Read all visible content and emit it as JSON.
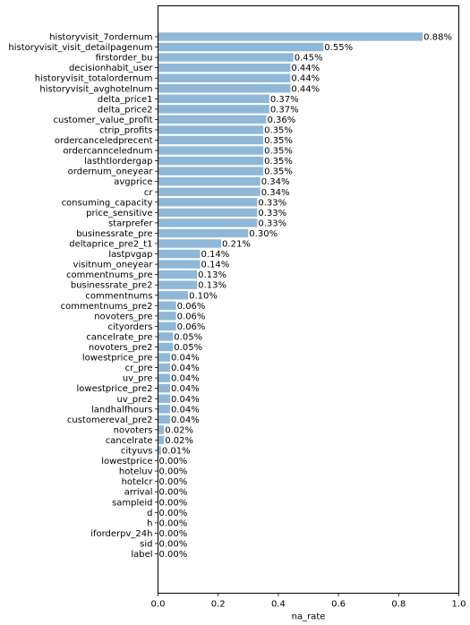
{
  "chart_data": {
    "type": "bar",
    "orientation": "horizontal",
    "xlabel": "na_rate",
    "ylabel": "",
    "xlim": [
      0.0,
      1.0
    ],
    "x_ticks": [
      "0.0",
      "0.2",
      "0.4",
      "0.6",
      "0.8",
      "1.0"
    ],
    "bar_color": "#8fb8d8",
    "grid": false,
    "categories": [
      "historyvisit_7ordernum",
      "historyvisit_visit_detailpagenum",
      "firstorder_bu",
      "decisionhabit_user",
      "historyvisit_totalordernum",
      "historyvisit_avghotelnum",
      "delta_price1",
      "delta_price2",
      "customer_value_profit",
      "ctrip_profits",
      "ordercanceledprecent",
      "ordercanncelednum",
      "lasthtlordergap",
      "ordernum_oneyear",
      "avgprice",
      "cr",
      "consuming_capacity",
      "price_sensitive",
      "starprefer",
      "businessrate_pre",
      "deltaprice_pre2_t1",
      "lastpvgap",
      "visitnum_oneyear",
      "commentnums_pre",
      "businessrate_pre2",
      "commentnums",
      "commentnums_pre2",
      "novoters_pre",
      "cityorders",
      "cancelrate_pre",
      "novoters_pre2",
      "lowestprice_pre",
      "cr_pre",
      "uv_pre",
      "lowestprice_pre2",
      "uv_pre2",
      "landhalfhours",
      "customereval_pre2",
      "novoters",
      "cancelrate",
      "cityuvs",
      "lowestprice",
      "hoteluv",
      "hotelcr",
      "arrival",
      "sampleid",
      "d",
      "h",
      "iforderpv_24h",
      "sid",
      "label"
    ],
    "values": [
      0.88,
      0.55,
      0.45,
      0.44,
      0.44,
      0.44,
      0.37,
      0.37,
      0.36,
      0.35,
      0.35,
      0.35,
      0.35,
      0.35,
      0.34,
      0.34,
      0.33,
      0.33,
      0.33,
      0.3,
      0.21,
      0.14,
      0.14,
      0.13,
      0.13,
      0.1,
      0.06,
      0.06,
      0.06,
      0.05,
      0.05,
      0.04,
      0.04,
      0.04,
      0.04,
      0.04,
      0.04,
      0.04,
      0.02,
      0.02,
      0.01,
      0.0,
      0.0,
      0.0,
      0.0,
      0.0,
      0.0,
      0.0,
      0.0,
      0.0,
      0.0
    ],
    "value_labels": [
      "0.88%",
      "0.55%",
      "0.45%",
      "0.44%",
      "0.44%",
      "0.44%",
      "0.37%",
      "0.37%",
      "0.36%",
      "0.35%",
      "0.35%",
      "0.35%",
      "0.35%",
      "0.35%",
      "0.34%",
      "0.34%",
      "0.33%",
      "0.33%",
      "0.33%",
      "0.30%",
      "0.21%",
      "0.14%",
      "0.14%",
      "0.13%",
      "0.13%",
      "0.10%",
      "0.06%",
      "0.06%",
      "0.06%",
      "0.05%",
      "0.05%",
      "0.04%",
      "0.04%",
      "0.04%",
      "0.04%",
      "0.04%",
      "0.04%",
      "0.04%",
      "0.02%",
      "0.02%",
      "0.01%",
      "0.00%",
      "0.00%",
      "0.00%",
      "0.00%",
      "0.00%",
      "0.00%",
      "0.00%",
      "0.00%",
      "0.00%",
      "0.00%"
    ]
  }
}
